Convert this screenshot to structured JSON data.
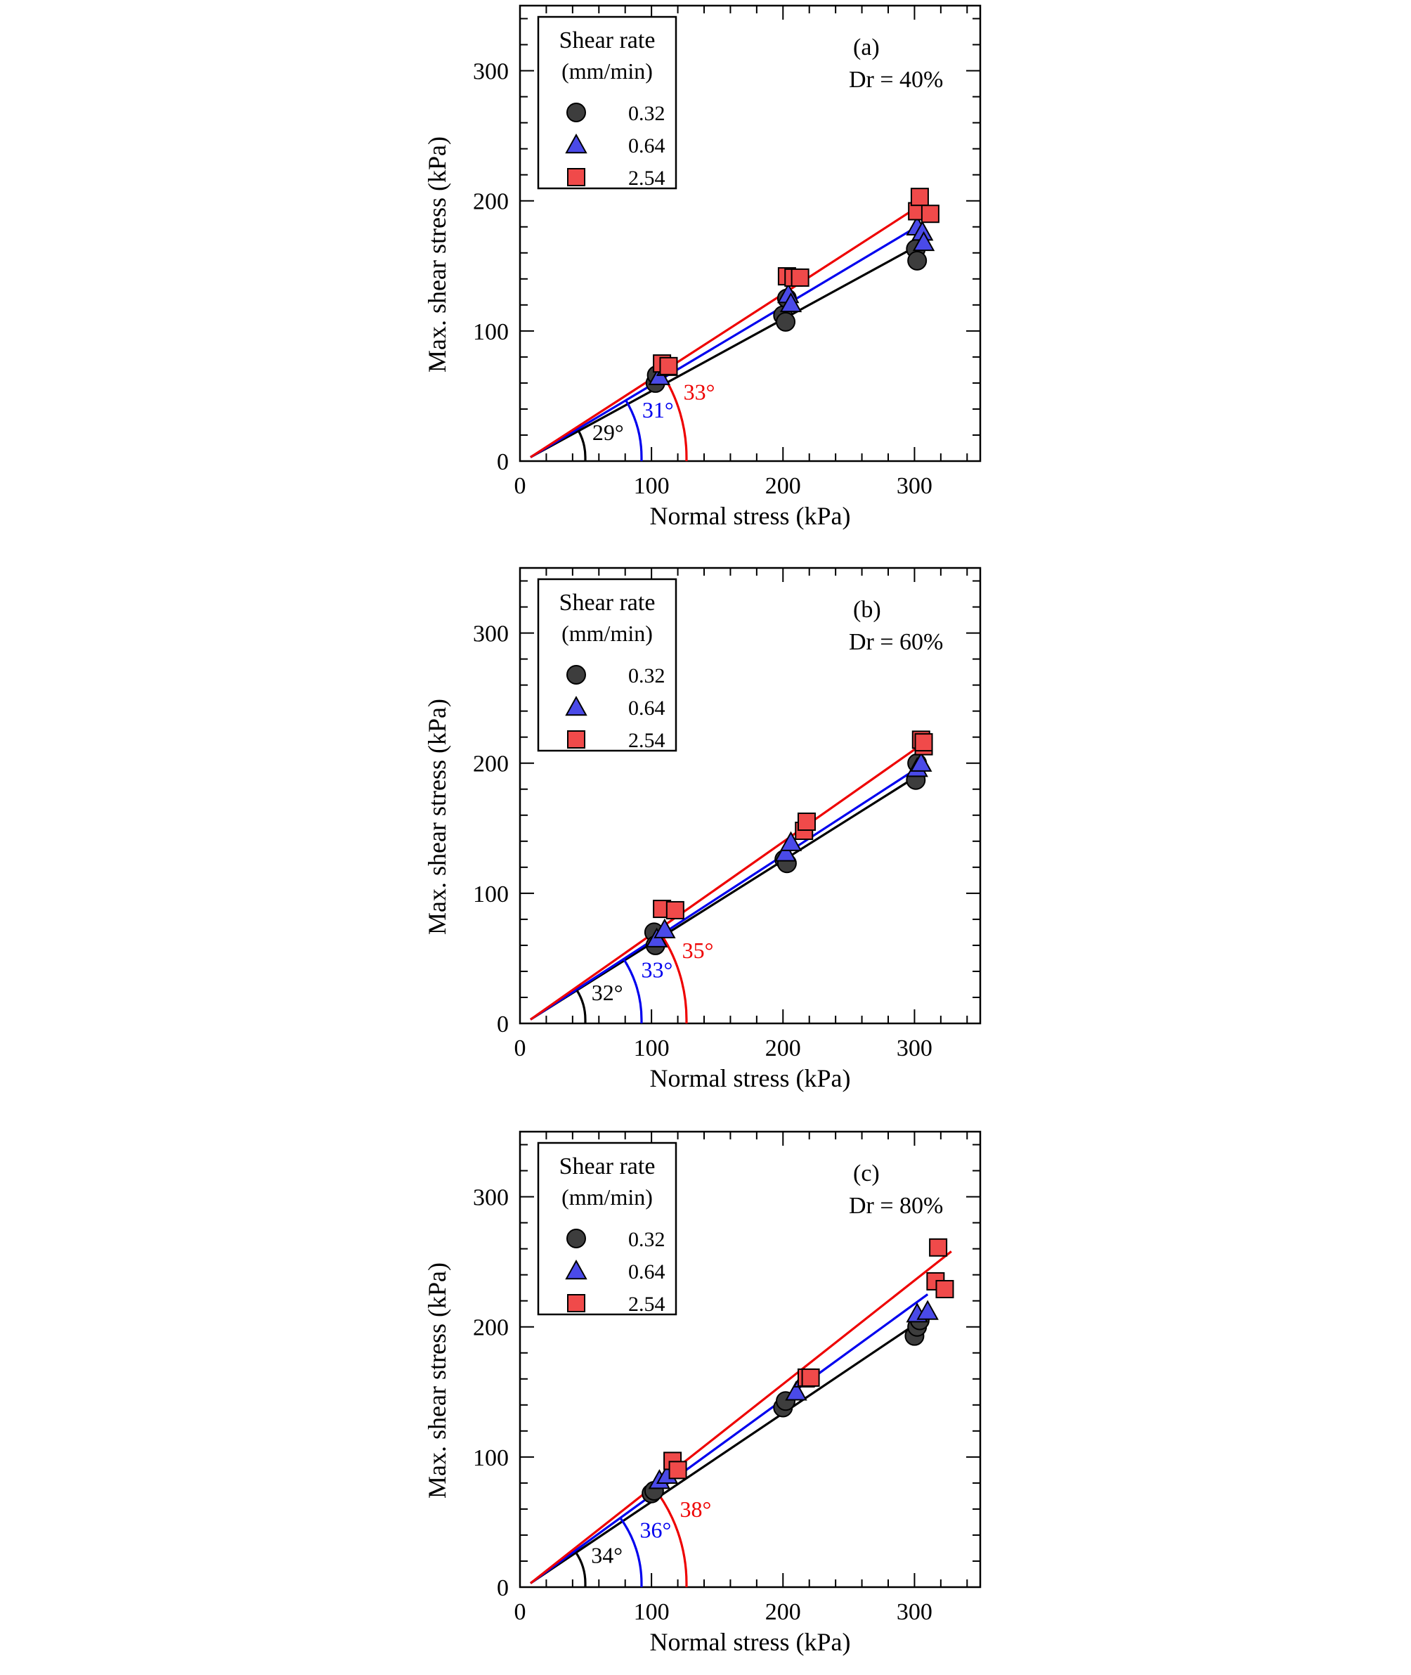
{
  "colors": {
    "series_0_32": "#3d3d3d",
    "series_0_64": "#4a4ae8",
    "series_2_54": "#f04a4a",
    "line_0_32": "#000000",
    "line_0_64": "#0000ee",
    "line_2_54": "#ee0000"
  },
  "legend": {
    "title_line1": "Shear rate",
    "title_line2": "(mm/min)",
    "entries": [
      {
        "label": "0.32",
        "marker": "circle"
      },
      {
        "label": "0.64",
        "marker": "triangle"
      },
      {
        "label": "2.54",
        "marker": "square"
      }
    ]
  },
  "chart_data": [
    {
      "type": "scatter",
      "panel": "(a)",
      "condition": "Dr = 40%",
      "xlabel": "Normal stress (kPa)",
      "ylabel": "Max. shear stress (kPa)",
      "xlim": [
        0,
        350
      ],
      "ylim": [
        0,
        350
      ],
      "xticks": [
        0,
        100,
        200,
        300
      ],
      "yticks": [
        0,
        100,
        200,
        300
      ],
      "angle_labels": [
        "29°",
        "31°",
        "33°"
      ],
      "series": [
        {
          "name": "0.32",
          "points": [
            [
              103,
              60
            ],
            [
              104,
              66
            ],
            [
              200,
              112
            ],
            [
              202,
              107
            ],
            [
              203,
              125
            ],
            [
              301,
              163
            ],
            [
              302,
              154
            ]
          ],
          "fit": [
            [
              8,
              3
            ],
            [
              305,
              167
            ]
          ]
        },
        {
          "name": "0.64",
          "points": [
            [
              106,
              65
            ],
            [
              112,
              72
            ],
            [
              204,
              128
            ],
            [
              206,
              121
            ],
            [
              302,
              180
            ],
            [
              306,
              176
            ],
            [
              307,
              168
            ]
          ],
          "fit": [
            [
              8,
              3
            ],
            [
              305,
              182
            ]
          ]
        },
        {
          "name": "2.54",
          "points": [
            [
              108,
              75
            ],
            [
              113,
              73
            ],
            [
              203,
              142
            ],
            [
              208,
              141
            ],
            [
              213,
              141
            ],
            [
              302,
              192
            ],
            [
              304,
              203
            ],
            [
              312,
              190
            ]
          ],
          "fit": [
            [
              8,
              3
            ],
            [
              305,
              197
            ]
          ]
        }
      ]
    },
    {
      "type": "scatter",
      "panel": "(b)",
      "condition": "Dr = 60%",
      "xlabel": "Normal stress (kPa)",
      "ylabel": "Max. shear stress (kPa)",
      "xlim": [
        0,
        350
      ],
      "ylim": [
        0,
        350
      ],
      "xticks": [
        0,
        100,
        200,
        300
      ],
      "yticks": [
        0,
        100,
        200,
        300
      ],
      "angle_labels": [
        "32°",
        "33°",
        "35°"
      ],
      "series": [
        {
          "name": "0.32",
          "points": [
            [
              102,
              70
            ],
            [
              103,
              60
            ],
            [
              201,
              126
            ],
            [
              203,
              123
            ],
            [
              301,
              187
            ],
            [
              302,
              200
            ]
          ],
          "fit": [
            [
              8,
              3
            ],
            [
              305,
              192
            ]
          ]
        },
        {
          "name": "0.64",
          "points": [
            [
              104,
              65
            ],
            [
              110,
              72
            ],
            [
              202,
              131
            ],
            [
              206,
              139
            ],
            [
              302,
              196
            ],
            [
              305,
              200
            ]
          ],
          "fit": [
            [
              8,
              3
            ],
            [
              305,
              198
            ]
          ]
        },
        {
          "name": "2.54",
          "points": [
            [
              108,
              88
            ],
            [
              118,
              87
            ],
            [
              216,
              148
            ],
            [
              218,
              155
            ],
            [
              305,
              218
            ],
            [
              307,
              213
            ],
            [
              307,
              216
            ]
          ],
          "fit": [
            [
              8,
              3
            ],
            [
              305,
              214
            ]
          ]
        }
      ]
    },
    {
      "type": "scatter",
      "panel": "(c)",
      "condition": "Dr = 80%",
      "xlabel": "Normal stress (kPa)",
      "ylabel": "Max. shear stress (kPa)",
      "xlim": [
        0,
        350
      ],
      "ylim": [
        0,
        350
      ],
      "xticks": [
        0,
        100,
        200,
        300
      ],
      "yticks": [
        0,
        100,
        200,
        300
      ],
      "angle_labels": [
        "34°",
        "36°",
        "38°"
      ],
      "series": [
        {
          "name": "0.32",
          "points": [
            [
              100,
              72
            ],
            [
              102,
              74
            ],
            [
              200,
              138
            ],
            [
              202,
              143
            ],
            [
              300,
              193
            ],
            [
              302,
              200
            ],
            [
              304,
              205
            ]
          ],
          "fit": [
            [
              8,
              3
            ],
            [
              305,
              205
            ]
          ]
        },
        {
          "name": "0.64",
          "points": [
            [
              106,
              82
            ],
            [
              112,
              86
            ],
            [
              210,
              150
            ],
            [
              216,
              160
            ],
            [
              302,
              210
            ],
            [
              310,
              212
            ]
          ],
          "fit": [
            [
              8,
              3
            ],
            [
              310,
              225
            ]
          ]
        },
        {
          "name": "2.54",
          "points": [
            [
              116,
              97
            ],
            [
              120,
              90
            ],
            [
              218,
              161
            ],
            [
              221,
              161
            ],
            [
              316,
              235
            ],
            [
              318,
              261
            ],
            [
              323,
              229
            ]
          ],
          "fit": [
            [
              8,
              3
            ],
            [
              328,
              258
            ]
          ]
        }
      ]
    }
  ]
}
